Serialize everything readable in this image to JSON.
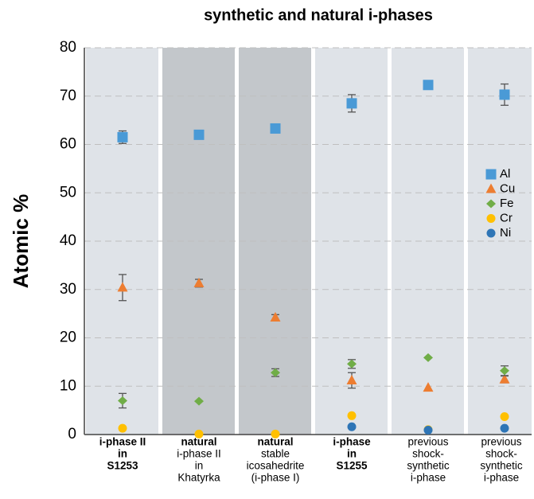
{
  "chart_data": {
    "type": "scatter",
    "title": "synthetic and natural i-phases",
    "y_label": "Atomic %",
    "categories": [
      [
        "i-phase II",
        "in",
        "S1253"
      ],
      [
        "natural",
        "i-phase II",
        "in",
        "Khatyrka"
      ],
      [
        "natural",
        "stable",
        "icosahedrite",
        "(i-phase I)"
      ],
      [
        "i-phase",
        "in",
        "S1255"
      ],
      [
        "previous",
        "shock-",
        "synthetic",
        "i-phase"
      ],
      [
        "previous",
        "shock-",
        "synthetic",
        "i-phase"
      ]
    ],
    "category_bold_lines": [
      3,
      1,
      1,
      3,
      0,
      0
    ],
    "panel_colors": [
      "#dfe3e8",
      "#c3c7cb",
      "#c3c7cb",
      "#dfe3e8",
      "#dfe3e8",
      "#dfe3e8"
    ],
    "series": [
      {
        "name": "Al",
        "color": "#4a9ad6",
        "marker": "square",
        "values": [
          61.5,
          62,
          63.3,
          68.5,
          72.3,
          70.3
        ],
        "errors": [
          1.3,
          0.6,
          null,
          1.8,
          null,
          2.2
        ]
      },
      {
        "name": "Cu",
        "color": "#ed7d31",
        "marker": "triangle",
        "values": [
          30.4,
          31.3,
          24.2,
          11.2,
          9.7,
          11.4
        ],
        "errors": [
          2.7,
          0.8,
          0.6,
          1.6,
          null,
          0.7
        ]
      },
      {
        "name": "Fe",
        "color": "#70ad47",
        "marker": "diamond",
        "values": [
          7,
          6.9,
          12.8,
          14.6,
          15.9,
          13.2
        ],
        "errors": [
          1.5,
          null,
          0.8,
          0.9,
          null,
          1.0
        ]
      },
      {
        "name": "Cr",
        "color": "#ffc000",
        "marker": "circle",
        "values": [
          1.3,
          0.1,
          0.1,
          3.9,
          1.0,
          3.7
        ],
        "errors": [
          null,
          null,
          null,
          null,
          null,
          null
        ]
      },
      {
        "name": "Ni",
        "color": "#2e75b6",
        "marker": "circle",
        "values": [
          null,
          null,
          null,
          1.6,
          0.9,
          1.3
        ],
        "errors": [
          null,
          null,
          null,
          null,
          null,
          null
        ]
      }
    ],
    "ylim": [
      0,
      80
    ],
    "yticks": [
      0,
      10,
      20,
      30,
      40,
      50,
      60,
      70,
      80
    ],
    "grid": true,
    "legend": "right"
  }
}
